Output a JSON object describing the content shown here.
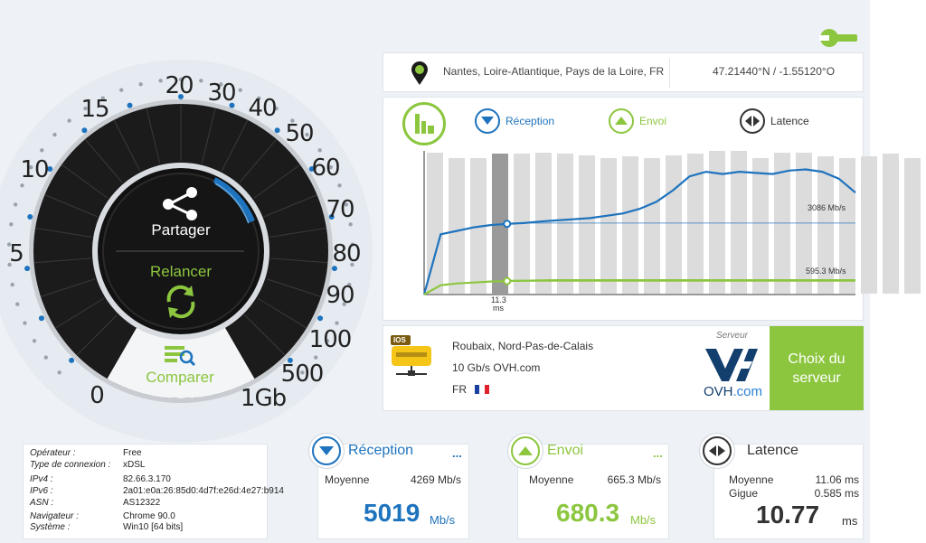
{
  "colors": {
    "blue": "#1e73be",
    "green": "#8cc63f",
    "dark": "#222222",
    "grey_bar": "#dcdcdc"
  },
  "gauge": {
    "scale_labels": [
      "0",
      "5",
      "10",
      "15",
      "20",
      "30",
      "40",
      "50",
      "60",
      "70",
      "80",
      "90",
      "100",
      "500",
      "1Gb"
    ],
    "share_label": "Partager",
    "restart_label": "Relancer",
    "compare_label": "Comparer"
  },
  "location": {
    "place": "Nantes, Loire-Atlantique, Pays de la Loire, FR",
    "coords": "47.21440°N / -1.55120°O"
  },
  "graph": {
    "legend": {
      "reception": "Réception",
      "envoi": "Envoi",
      "latence": "Latence"
    },
    "reception_value_label": "3086 Mb/s",
    "envoi_value_label": "595.3 Mb/s",
    "cursor_time": "11.3",
    "cursor_unit": "ms"
  },
  "chart_data": {
    "type": "line",
    "series": [
      {
        "name": "Réception",
        "values": [
          0,
          2600,
          2750,
          2900,
          3000,
          3050,
          3086,
          3150,
          3200,
          3250,
          3300,
          3400,
          3500,
          3700,
          4000,
          4500,
          5100,
          5300,
          5200,
          5300,
          5250,
          5200,
          5350,
          5400,
          5300,
          5000,
          4400
        ]
      },
      {
        "name": "Envoi",
        "values": [
          0,
          400,
          480,
          520,
          560,
          580,
          595,
          610,
          620,
          620,
          620,
          620,
          620,
          620,
          620,
          620,
          620,
          620,
          620,
          620,
          620,
          620,
          620,
          620,
          620,
          620,
          620
        ]
      }
    ],
    "reference_lines": [
      3086,
      595.3
    ],
    "grid": false
  },
  "server": {
    "ios_badge": "IOS",
    "city": "Roubaix, Nord-Pas-de-Calais",
    "provider": "10 Gb/s OVH.com",
    "country": "FR",
    "serveur_label": "Serveur",
    "ovh_text": "OVH",
    "ovh_dotcom": ".com",
    "choose_line1": "Choix du",
    "choose_line2": "serveur"
  },
  "info": {
    "rows": [
      {
        "label": "Opérateur :",
        "value": "Free"
      },
      {
        "label": "Type de connexion :",
        "value": "xDSL"
      },
      {
        "label": "IPv4 :",
        "value": "82.66.3.170"
      },
      {
        "label": "IPv6 :",
        "value": "2a01:e0a:26:85d0:4d7f:e26d:4e27:b914"
      },
      {
        "label": "ASN :",
        "value": "AS12322"
      },
      {
        "label": "Navigateur :",
        "value": "Chrome 90.0"
      },
      {
        "label": "Système :",
        "value": "Win10 [64 bits]"
      }
    ]
  },
  "results": {
    "reception": {
      "title": "Réception",
      "dots": "...",
      "avg_label": "Moyenne",
      "avg_value": "4269 Mb/s",
      "main": "5019",
      "unit": "Mb/s"
    },
    "envoi": {
      "title": "Envoi",
      "dots": "...",
      "avg_label": "Moyenne",
      "avg_value": "665.3 Mb/s",
      "main": "680.3",
      "unit": "Mb/s"
    },
    "latence": {
      "title": "Latence",
      "avg_label": "Moyenne",
      "avg_value": "11.06 ms",
      "jitter_label": "Gigue",
      "jitter_value": "0.585 ms",
      "main": "10.77",
      "unit": "ms"
    }
  }
}
